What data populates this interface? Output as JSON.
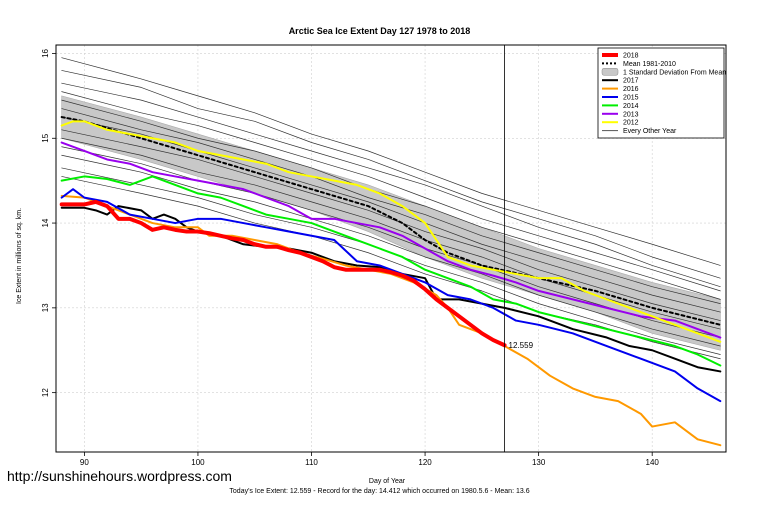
{
  "watermark": "http://sunshinehours.wordpress.com",
  "chart_data": {
    "type": "line",
    "title": "Arctic Sea Ice Extent Day 127 1978 to 2018",
    "xlabel": "Day of Year",
    "ylabel": "Ice Extent in millions of sq. km.",
    "caption": "Today's Ice Extent: 12.559  - Record for the day: 14.412 which occurred on 1980.5.6  - Mean: 13.6",
    "xlim": [
      87.5,
      146.5
    ],
    "ylim": [
      11.3,
      16.1
    ],
    "x_ticks": [
      90,
      100,
      110,
      120,
      130,
      140
    ],
    "y_ticks": [
      12,
      13,
      14,
      15,
      16
    ],
    "vline_x": 127,
    "grid": true,
    "legend_position": "top-right",
    "annotation": {
      "x": 127,
      "y": 12.559,
      "text": "12.559",
      "color": "#ff0000"
    },
    "legend": [
      {
        "label": "2018",
        "kind": "line",
        "color": "#ff0000",
        "width": 4
      },
      {
        "label": "Mean 1981-2010",
        "kind": "dotted",
        "color": "#000000",
        "width": 2
      },
      {
        "label": "1 Standard Deviation From Mean",
        "kind": "band",
        "color": "#c8c8c8",
        "width": 8
      },
      {
        "label": "2017",
        "kind": "line",
        "color": "#000000",
        "width": 2
      },
      {
        "label": "2016",
        "kind": "line",
        "color": "#ff9900",
        "width": 2
      },
      {
        "label": "2015",
        "kind": "line",
        "color": "#0000ee",
        "width": 2
      },
      {
        "label": "2014",
        "kind": "line",
        "color": "#00ee00",
        "width": 2
      },
      {
        "label": "2013",
        "kind": "line",
        "color": "#9900ee",
        "width": 2
      },
      {
        "label": "2012",
        "kind": "line",
        "color": "#ffff00",
        "width": 2
      },
      {
        "label": "Every Other Year",
        "kind": "line",
        "color": "#555555",
        "width": 1
      }
    ],
    "std_band": {
      "x": [
        88,
        95,
        100,
        105,
        110,
        115,
        120,
        125,
        130,
        135,
        140,
        146
      ],
      "upper": [
        15.5,
        15.25,
        15.05,
        14.85,
        14.65,
        14.45,
        14.2,
        13.95,
        13.7,
        13.5,
        13.3,
        13.1
      ],
      "lower": [
        15.0,
        14.75,
        14.55,
        14.35,
        14.15,
        13.9,
        13.6,
        13.35,
        13.15,
        12.95,
        12.7,
        12.5
      ]
    },
    "series": [
      {
        "name": "Mean 1981-2010",
        "color": "#000000",
        "width": 2,
        "dash": "3,3",
        "x": [
          88,
          90,
          95,
          100,
          105,
          110,
          115,
          118,
          120,
          122,
          125,
          130,
          135,
          140,
          146
        ],
        "y": [
          15.25,
          15.2,
          15.0,
          14.8,
          14.6,
          14.4,
          14.2,
          14.0,
          13.8,
          13.65,
          13.5,
          13.35,
          13.2,
          13.0,
          12.8
        ]
      },
      {
        "name": "2018",
        "color": "#ff0000",
        "width": 4,
        "x": [
          88,
          90,
          91,
          92,
          93,
          94,
          95,
          96,
          97,
          98,
          99,
          100,
          101,
          102,
          103,
          104,
          105,
          106,
          107,
          108,
          109,
          110,
          111,
          112,
          113,
          114,
          115,
          116,
          117,
          118,
          119,
          120,
          121,
          122,
          123,
          124,
          125,
          126,
          127
        ],
        "y": [
          14.22,
          14.22,
          14.25,
          14.2,
          14.05,
          14.05,
          14.0,
          13.92,
          13.95,
          13.92,
          13.9,
          13.9,
          13.88,
          13.85,
          13.82,
          13.8,
          13.75,
          13.72,
          13.72,
          13.68,
          13.65,
          13.6,
          13.55,
          13.48,
          13.45,
          13.45,
          13.45,
          13.45,
          13.42,
          13.38,
          13.32,
          13.22,
          13.1,
          13.0,
          12.9,
          12.8,
          12.7,
          12.62,
          12.559
        ]
      },
      {
        "name": "2017",
        "color": "#000000",
        "width": 2,
        "x": [
          88,
          90,
          91,
          92,
          93,
          95,
          96,
          97,
          98,
          99,
          100,
          102,
          104,
          106,
          108,
          110,
          112,
          114,
          116,
          118,
          120,
          121,
          123,
          125,
          127,
          130,
          133,
          136,
          138,
          140,
          142,
          144,
          146
        ],
        "y": [
          14.18,
          14.18,
          14.15,
          14.1,
          14.2,
          14.15,
          14.05,
          14.1,
          14.05,
          13.95,
          13.9,
          13.85,
          13.75,
          13.72,
          13.7,
          13.65,
          13.55,
          13.5,
          13.48,
          13.4,
          13.35,
          13.1,
          13.1,
          13.05,
          13.0,
          12.9,
          12.75,
          12.65,
          12.55,
          12.5,
          12.4,
          12.3,
          12.25
        ]
      },
      {
        "name": "2016",
        "color": "#ff9900",
        "width": 2,
        "x": [
          88,
          90,
          92,
          94,
          96,
          98,
          100,
          101,
          103,
          105,
          107,
          109,
          111,
          113,
          115,
          117,
          119,
          121,
          122,
          123,
          125,
          127,
          129,
          131,
          133,
          135,
          137,
          139,
          140,
          142,
          144,
          146
        ],
        "y": [
          14.32,
          14.3,
          14.2,
          14.1,
          14.0,
          13.95,
          13.95,
          13.85,
          13.85,
          13.8,
          13.75,
          13.65,
          13.58,
          13.5,
          13.45,
          13.4,
          13.3,
          13.15,
          13.0,
          12.8,
          12.7,
          12.55,
          12.4,
          12.2,
          12.05,
          11.95,
          11.9,
          11.75,
          11.6,
          11.65,
          11.45,
          11.38
        ]
      },
      {
        "name": "2015",
        "color": "#0000ee",
        "width": 2,
        "x": [
          88,
          89,
          90,
          92,
          94,
          96,
          98,
          100,
          102,
          104,
          106,
          108,
          110,
          112,
          114,
          116,
          118,
          120,
          122,
          124,
          126,
          128,
          130,
          133,
          136,
          139,
          142,
          144,
          146
        ],
        "y": [
          14.3,
          14.4,
          14.3,
          14.25,
          14.1,
          14.05,
          14.0,
          14.05,
          14.05,
          14.0,
          13.95,
          13.9,
          13.85,
          13.8,
          13.55,
          13.5,
          13.4,
          13.3,
          13.15,
          13.1,
          13.0,
          12.85,
          12.8,
          12.7,
          12.55,
          12.4,
          12.25,
          12.05,
          11.9
        ]
      },
      {
        "name": "2014",
        "color": "#00ee00",
        "width": 2,
        "x": [
          88,
          90,
          92,
          94,
          96,
          98,
          100,
          102,
          104,
          106,
          108,
          110,
          112,
          114,
          116,
          118,
          120,
          122,
          124,
          126,
          128,
          130,
          133,
          136,
          139,
          142,
          144,
          146
        ],
        "y": [
          14.5,
          14.55,
          14.52,
          14.45,
          14.55,
          14.45,
          14.35,
          14.3,
          14.2,
          14.1,
          14.05,
          14.0,
          13.9,
          13.8,
          13.7,
          13.6,
          13.45,
          13.35,
          13.25,
          13.1,
          13.05,
          12.95,
          12.85,
          12.75,
          12.65,
          12.55,
          12.45,
          12.32
        ]
      },
      {
        "name": "2013",
        "color": "#9900ee",
        "width": 2,
        "x": [
          88,
          90,
          92,
          94,
          96,
          98,
          100,
          102,
          104,
          106,
          108,
          110,
          112,
          114,
          116,
          118,
          120,
          122,
          124,
          126,
          128,
          130,
          133,
          136,
          139,
          142,
          144,
          146
        ],
        "y": [
          14.95,
          14.85,
          14.75,
          14.7,
          14.6,
          14.55,
          14.5,
          14.45,
          14.4,
          14.3,
          14.2,
          14.05,
          14.05,
          14.0,
          13.95,
          13.85,
          13.7,
          13.55,
          13.45,
          13.38,
          13.3,
          13.2,
          13.1,
          13.0,
          12.9,
          12.85,
          12.75,
          12.65
        ]
      },
      {
        "name": "2012",
        "color": "#ffff00",
        "width": 2,
        "x": [
          88,
          89,
          90,
          92,
          94,
          96,
          98,
          100,
          102,
          104,
          106,
          108,
          110,
          112,
          114,
          116,
          118,
          120,
          122,
          124,
          126,
          128,
          130,
          132,
          134,
          136,
          138,
          140,
          142,
          144,
          146
        ],
        "y": [
          15.15,
          15.2,
          15.2,
          15.1,
          15.05,
          15.0,
          14.95,
          14.85,
          14.8,
          14.75,
          14.7,
          14.6,
          14.55,
          14.5,
          14.45,
          14.35,
          14.2,
          14.0,
          13.6,
          13.5,
          13.45,
          13.4,
          13.35,
          13.35,
          13.2,
          13.1,
          13.0,
          12.9,
          12.8,
          12.7,
          12.6
        ]
      },
      {
        "name": "Every Other Year",
        "color": "#333333",
        "width": 0.7,
        "x": [
          88,
          95,
          100,
          105,
          110,
          115,
          120,
          125,
          130,
          135,
          140,
          146
        ],
        "y": [
          15.95,
          15.7,
          15.5,
          15.3,
          15.05,
          14.85,
          14.6,
          14.35,
          14.15,
          13.95,
          13.75,
          13.5
        ]
      },
      {
        "color": "#333333",
        "width": 0.7,
        "x": [
          88,
          95,
          100,
          105,
          110,
          115,
          120,
          125,
          130,
          135,
          140,
          146
        ],
        "y": [
          15.8,
          15.6,
          15.35,
          15.2,
          14.95,
          14.75,
          14.5,
          14.25,
          14.05,
          13.85,
          13.6,
          13.35
        ]
      },
      {
        "color": "#333333",
        "width": 0.7,
        "x": [
          88,
          95,
          100,
          105,
          110,
          115,
          120,
          125,
          130,
          135,
          140,
          146
        ],
        "y": [
          15.65,
          15.45,
          15.25,
          15.05,
          14.85,
          14.65,
          14.45,
          14.2,
          13.95,
          13.75,
          13.5,
          13.25
        ]
      },
      {
        "color": "#333333",
        "width": 0.7,
        "x": [
          88,
          95,
          100,
          105,
          110,
          115,
          120,
          125,
          130,
          135,
          140,
          146
        ],
        "y": [
          15.55,
          15.3,
          15.15,
          14.95,
          14.75,
          14.55,
          14.3,
          14.05,
          13.85,
          13.65,
          13.45,
          13.2
        ]
      },
      {
        "color": "#333333",
        "width": 0.7,
        "x": [
          88,
          95,
          100,
          105,
          110,
          115,
          120,
          125,
          130,
          135,
          140,
          146
        ],
        "y": [
          15.45,
          15.2,
          15.0,
          14.85,
          14.65,
          14.4,
          14.2,
          13.95,
          13.75,
          13.55,
          13.35,
          13.1
        ]
      },
      {
        "color": "#333333",
        "width": 0.7,
        "x": [
          88,
          95,
          100,
          105,
          110,
          115,
          120,
          125,
          130,
          135,
          140,
          146
        ],
        "y": [
          15.35,
          15.1,
          14.95,
          14.75,
          14.55,
          14.3,
          14.1,
          13.85,
          13.65,
          13.45,
          13.25,
          13.05
        ]
      },
      {
        "color": "#333333",
        "width": 0.7,
        "x": [
          88,
          95,
          100,
          105,
          110,
          115,
          120,
          125,
          130,
          135,
          140,
          146
        ],
        "y": [
          15.25,
          15.05,
          14.85,
          14.65,
          14.45,
          14.25,
          14.0,
          13.75,
          13.55,
          13.35,
          13.15,
          12.95
        ]
      },
      {
        "color": "#333333",
        "width": 0.7,
        "x": [
          88,
          95,
          100,
          105,
          110,
          115,
          120,
          125,
          130,
          135,
          140,
          146
        ],
        "y": [
          15.1,
          14.9,
          14.75,
          14.55,
          14.35,
          14.15,
          13.9,
          13.7,
          13.45,
          13.25,
          13.05,
          12.85
        ]
      },
      {
        "color": "#333333",
        "width": 0.7,
        "x": [
          88,
          95,
          100,
          105,
          110,
          115,
          120,
          125,
          130,
          135,
          140,
          146
        ],
        "y": [
          15.0,
          14.8,
          14.6,
          14.45,
          14.25,
          14.05,
          13.8,
          13.6,
          13.35,
          13.15,
          12.95,
          12.75
        ]
      },
      {
        "color": "#333333",
        "width": 0.7,
        "x": [
          88,
          95,
          100,
          105,
          110,
          115,
          120,
          125,
          130,
          135,
          140,
          146
        ],
        "y": [
          14.9,
          14.7,
          14.5,
          14.35,
          14.15,
          13.95,
          13.7,
          13.5,
          13.25,
          13.05,
          12.85,
          12.65
        ]
      },
      {
        "color": "#333333",
        "width": 0.7,
        "x": [
          88,
          95,
          100,
          105,
          110,
          115,
          120,
          125,
          130,
          135,
          140,
          146
        ],
        "y": [
          14.8,
          14.6,
          14.4,
          14.25,
          14.05,
          13.85,
          13.6,
          13.4,
          13.15,
          12.95,
          12.75,
          12.55
        ]
      },
      {
        "color": "#333333",
        "width": 0.7,
        "x": [
          88,
          95,
          100,
          105,
          110,
          115,
          120,
          125,
          130,
          135,
          140,
          146
        ],
        "y": [
          14.65,
          14.45,
          14.3,
          14.1,
          13.95,
          13.75,
          13.5,
          13.3,
          13.05,
          12.85,
          12.65,
          12.45
        ]
      },
      {
        "color": "#333333",
        "width": 0.7,
        "x": [
          88,
          95,
          100,
          105,
          110,
          115,
          120,
          125,
          130,
          135,
          140,
          146
        ],
        "y": [
          14.55,
          14.35,
          14.2,
          14.0,
          13.85,
          13.65,
          13.4,
          13.2,
          12.95,
          12.8,
          12.6,
          12.4
        ]
      }
    ]
  }
}
